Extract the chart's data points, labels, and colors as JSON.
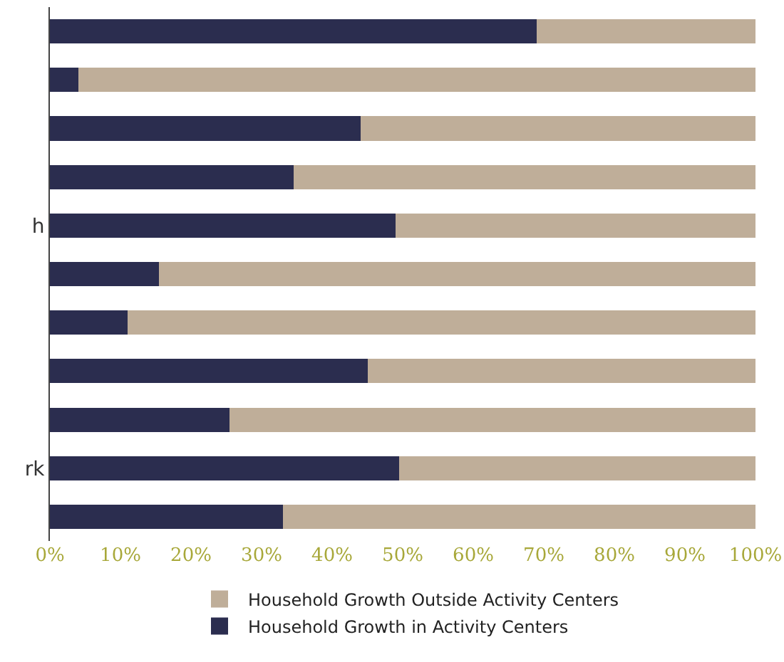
{
  "chart_data": {
    "type": "bar",
    "orientation": "horizontal",
    "stacked": true,
    "categories": [
      null,
      null,
      null,
      null,
      "h",
      null,
      null,
      null,
      null,
      "rk",
      null
    ],
    "series": [
      {
        "name": "Household Growth in Activity Centers",
        "color": "#2b2d4f",
        "values": [
          69,
          4,
          44,
          34.5,
          49,
          15.5,
          11,
          45,
          25.5,
          49.5,
          33
        ]
      },
      {
        "name": "Household Growth Outside Activity Centers",
        "color": "#bfae99",
        "values": [
          31,
          96,
          56,
          65.5,
          51,
          84.5,
          89,
          55,
          74.5,
          50.5,
          67
        ]
      }
    ],
    "xlim": [
      0,
      100
    ],
    "xticks": [
      {
        "value": 0,
        "label": "0%"
      },
      {
        "value": 10,
        "label": "10%"
      },
      {
        "value": 20,
        "label": "20%"
      },
      {
        "value": 30,
        "label": "30%"
      },
      {
        "value": 40,
        "label": "40%"
      },
      {
        "value": 50,
        "label": "50%"
      },
      {
        "value": 60,
        "label": "60%"
      },
      {
        "value": 70,
        "label": "70%"
      },
      {
        "value": 80,
        "label": "80%"
      },
      {
        "value": 90,
        "label": "90%"
      },
      {
        "value": 100,
        "label": "100%"
      }
    ],
    "grid": false,
    "legend": "bottom"
  }
}
